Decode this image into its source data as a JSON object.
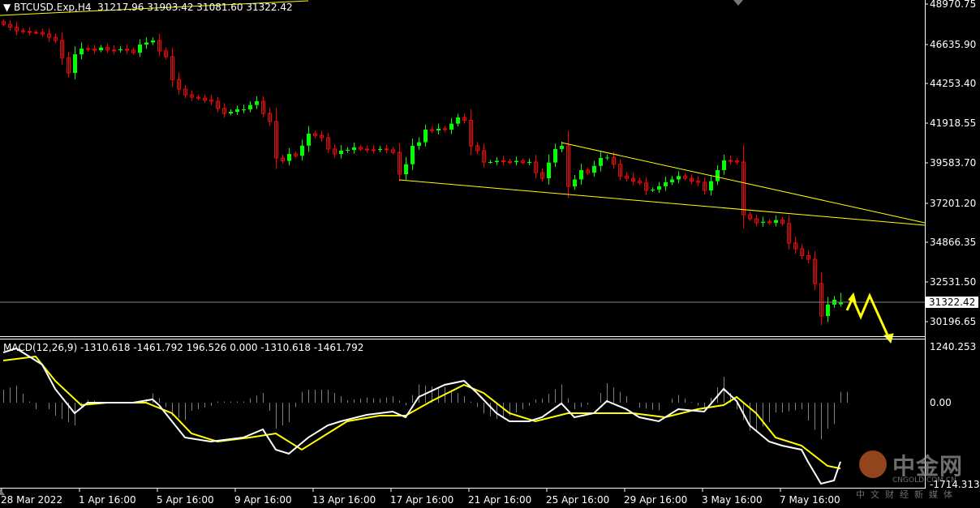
{
  "header": {
    "symbol": "BTCUSD.Exp,H4",
    "ohlc": "31217.96 31903.42 31081.60 31322.42"
  },
  "colors": {
    "bull": "#00ff00",
    "bear": "#ff0000",
    "trendline": "#ffff00",
    "macd_main": "#ffffff",
    "macd_signal": "#ffff00",
    "histogram": "#808080",
    "background": "#000000"
  },
  "price_axis": {
    "ticks": [
      "48970.75",
      "46635.90",
      "44253.40",
      "41918.55",
      "39583.70",
      "37201.20",
      "34866.35",
      "32531.50",
      "30196.65"
    ],
    "current_price": "31322.42"
  },
  "macd_axis": {
    "ticks": [
      "1240.253",
      "0.00",
      "-1714.313"
    ]
  },
  "macd_label": "MACD(12,26,9) -1310.618 -1461.792 196.526 0.000 -1310.618 -1461.792",
  "time_axis": [
    "28 Mar 2022",
    "1 Apr 16:00",
    "5 Apr 16:00",
    "9 Apr 16:00",
    "13 Apr 16:00",
    "17 Apr 16:00",
    "21 Apr 16:00",
    "25 Apr 16:00",
    "29 Apr 16:00",
    "3 May 16:00",
    "7 May 16:00"
  ],
  "logo": {
    "name": "中金网",
    "domain": "CNGOLD.COM.CN",
    "tagline": "中文财经新媒体"
  },
  "chart_data": [
    {
      "type": "candlestick",
      "timeframe": "H4",
      "ylim": [
        30196.65,
        48970.75
      ],
      "closes": [
        47773,
        47600,
        47390,
        47350,
        47300,
        47294,
        47200,
        47000,
        46815,
        45800,
        44899,
        46000,
        46336,
        46300,
        46240,
        46400,
        46250,
        46240,
        46300,
        46240,
        46100,
        46576,
        46700,
        46815,
        46200,
        45857,
        44500,
        43941,
        43600,
        43462,
        43400,
        43300,
        43223,
        42800,
        42504,
        42600,
        42744,
        42744,
        43000,
        43223,
        42500,
        42025,
        39870,
        39700,
        40109,
        40000,
        40600,
        41307,
        41200,
        41067,
        40400,
        40109,
        40300,
        40348,
        40500,
        40400,
        40350,
        40348,
        40400,
        40348,
        40200,
        38911,
        39500,
        40588,
        40800,
        41546,
        41500,
        41600,
        41546,
        41900,
        42265,
        42100,
        40588,
        40300,
        39630,
        39630,
        39700,
        39650,
        39630,
        39700,
        39600,
        39630,
        39000,
        38672,
        39600,
        40400,
        40588,
        38192,
        38600,
        39151,
        39000,
        39400,
        39870,
        39900,
        39500,
        38800,
        38672,
        38500,
        38400,
        37953,
        38000,
        38200,
        38432,
        38600,
        38800,
        38672,
        38500,
        38432,
        37953,
        38500,
        39151,
        39726,
        39700,
        39630,
        36517,
        36277,
        36038,
        36100,
        36038,
        36200,
        36000,
        34840,
        34500,
        34100,
        33882,
        32445,
        30529,
        31200,
        31487,
        31322.42
      ],
      "last_candle": {
        "open": 31217.96,
        "high": 31903.42,
        "low": 31081.6,
        "close": 31322.42
      },
      "trendlines": [
        {
          "from": [
            86,
            40780
          ],
          "to": [
            142,
            36038
          ]
        },
        {
          "from": [
            61,
            38576
          ],
          "to": [
            142,
            35894
          ]
        }
      ]
    },
    {
      "type": "line",
      "title": "MACD(12,26,9)",
      "ylim": [
        -1714.313,
        1240.253
      ],
      "main": [
        [
          0,
          1116
        ],
        [
          2,
          1206
        ],
        [
          6,
          846
        ],
        [
          8,
          306
        ],
        [
          11,
          -234
        ],
        [
          13,
          0
        ],
        [
          16,
          0
        ],
        [
          20,
          0
        ],
        [
          23,
          72
        ],
        [
          24,
          -54
        ],
        [
          26,
          -414
        ],
        [
          28,
          -774
        ],
        [
          32,
          -864
        ],
        [
          37,
          -774
        ],
        [
          40,
          -594
        ],
        [
          42,
          -1044
        ],
        [
          44,
          -1134
        ],
        [
          47,
          -774
        ],
        [
          50,
          -504
        ],
        [
          52,
          -414
        ],
        [
          56,
          -270
        ],
        [
          60,
          -198
        ],
        [
          62,
          -324
        ],
        [
          64,
          126
        ],
        [
          68,
          396
        ],
        [
          71,
          486
        ],
        [
          73,
          216
        ],
        [
          76,
          -234
        ],
        [
          78,
          -414
        ],
        [
          81,
          -414
        ],
        [
          83,
          -324
        ],
        [
          86,
          -18
        ],
        [
          88,
          -324
        ],
        [
          91,
          -234
        ],
        [
          93,
          36
        ],
        [
          96,
          -144
        ],
        [
          98,
          -324
        ],
        [
          101,
          -414
        ],
        [
          104,
          -144
        ],
        [
          108,
          -198
        ],
        [
          111,
          306
        ],
        [
          113,
          36
        ],
        [
          115,
          -504
        ],
        [
          118,
          -864
        ],
        [
          120,
          -954
        ],
        [
          123,
          -1044
        ],
        [
          124,
          -1314
        ],
        [
          126,
          -1800
        ],
        [
          128,
          -1728
        ],
        [
          129,
          -1311
        ]
      ],
      "signal": [
        [
          0,
          936
        ],
        [
          5,
          1026
        ],
        [
          8,
          486
        ],
        [
          12,
          -54
        ],
        [
          16,
          0
        ],
        [
          22,
          0
        ],
        [
          26,
          -234
        ],
        [
          29,
          -684
        ],
        [
          33,
          -864
        ],
        [
          38,
          -774
        ],
        [
          42,
          -684
        ],
        [
          46,
          -1044
        ],
        [
          50,
          -684
        ],
        [
          53,
          -414
        ],
        [
          58,
          -288
        ],
        [
          62,
          -288
        ],
        [
          66,
          36
        ],
        [
          71,
          396
        ],
        [
          74,
          216
        ],
        [
          78,
          -234
        ],
        [
          82,
          -414
        ],
        [
          87,
          -234
        ],
        [
          92,
          -234
        ],
        [
          97,
          -234
        ],
        [
          102,
          -324
        ],
        [
          107,
          -144
        ],
        [
          111,
          -54
        ],
        [
          113,
          126
        ],
        [
          116,
          -234
        ],
        [
          119,
          -774
        ],
        [
          123,
          -954
        ],
        [
          127,
          -1404
        ],
        [
          129,
          -1462
        ]
      ]
    }
  ]
}
